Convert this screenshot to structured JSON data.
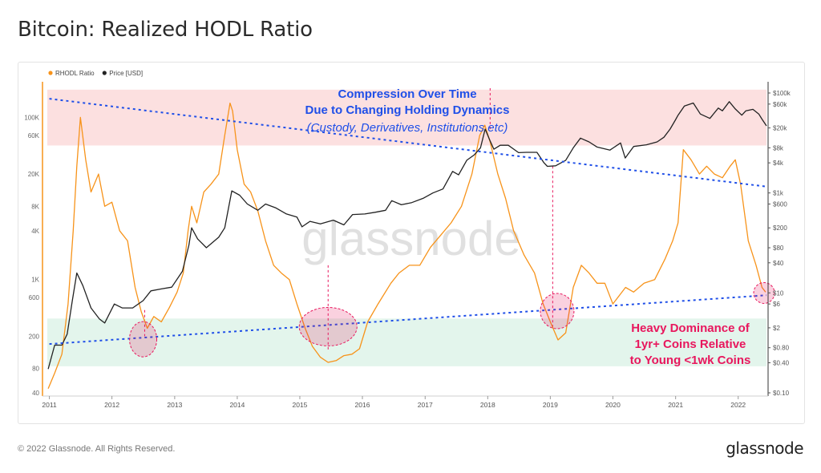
{
  "page": {
    "title": "Bitcoin: Realized HODL Ratio",
    "copyright": "© 2022 Glassnode. All Rights Reserved.",
    "logo": "glassnode",
    "watermark": "glassnode"
  },
  "colors": {
    "rhodl": "#f7931a",
    "price": "#222222",
    "trend": "#1f4fe8",
    "annotation_blue": "#1f4fe8",
    "annotation_pink": "#e8175d",
    "top_band": "#fbd5d5",
    "bottom_band": "#d9f2e6",
    "highlight_circle": "#e8175d"
  },
  "chart_data": {
    "type": "line",
    "title": "Bitcoin: Realized HODL Ratio",
    "legend": {
      "placement": "top-left",
      "items": [
        {
          "name": "RHODL Ratio",
          "color": "#f7931a"
        },
        {
          "name": "Price [USD]",
          "color": "#222222"
        }
      ]
    },
    "x_axis": {
      "type": "date",
      "range": [
        "2010-12-20",
        "2022-06-15"
      ],
      "tick_labels": [
        "2011",
        "2012",
        "2013",
        "2014",
        "2015",
        "2016",
        "2017",
        "2018",
        "2019",
        "2020",
        "2021",
        "2022"
      ]
    },
    "y_left": {
      "label": "",
      "scale": "log",
      "range": [
        40,
        200000
      ],
      "tick_labels": [
        "100K",
        "60K",
        "20K",
        "8K",
        "4K",
        "1K",
        "600",
        "200",
        "80",
        "40"
      ],
      "tick_values": [
        100000,
        60000,
        20000,
        8000,
        4000,
        1000,
        600,
        200,
        80,
        40
      ]
    },
    "y_right": {
      "label": "",
      "scale": "log",
      "range": [
        0.1,
        100000
      ],
      "tick_labels": [
        "$100k",
        "$60k",
        "$20k",
        "$8k",
        "$4k",
        "$1k",
        "$600",
        "$200",
        "$80",
        "$40",
        "$10",
        "$6",
        "$2",
        "$0.80",
        "$0.40",
        "$0.10"
      ],
      "tick_values": [
        100000,
        60000,
        20000,
        8000,
        4000,
        1000,
        600,
        200,
        80,
        40,
        10,
        6,
        2,
        0.8,
        0.4,
        0.1
      ]
    },
    "grid": false,
    "bands": [
      {
        "name": "top",
        "y_range": [
          45000,
          220000
        ],
        "color": "#fbd5d5"
      },
      {
        "name": "bottom",
        "y_range": [
          85,
          330
        ],
        "color": "#d9f2e6"
      }
    ],
    "series": [
      {
        "name": "RHODL Ratio",
        "axis": "left",
        "x": [
          "2010-12-25",
          "2011-02-01",
          "2011-03-15",
          "2011-04-20",
          "2011-05-20",
          "2011-06-10",
          "2011-07-01",
          "2011-08-01",
          "2011-09-01",
          "2011-10-15",
          "2011-11-20",
          "2012-01-01",
          "2012-02-15",
          "2012-04-01",
          "2012-05-15",
          "2012-06-20",
          "2012-07-25",
          "2012-09-01",
          "2012-10-15",
          "2012-12-01",
          "2013-01-15",
          "2013-02-20",
          "2013-03-20",
          "2013-04-10",
          "2013-05-10",
          "2013-06-20",
          "2013-08-01",
          "2013-09-15",
          "2013-10-20",
          "2013-11-20",
          "2013-12-05",
          "2014-01-01",
          "2014-02-10",
          "2014-03-20",
          "2014-05-01",
          "2014-06-15",
          "2014-08-01",
          "2014-09-15",
          "2014-11-01",
          "2014-12-15",
          "2015-02-01",
          "2015-03-15",
          "2015-05-01",
          "2015-06-15",
          "2015-08-01",
          "2015-09-15",
          "2015-11-01",
          "2015-12-15",
          "2016-02-01",
          "2016-04-01",
          "2016-06-15",
          "2016-08-01",
          "2016-10-01",
          "2016-12-01",
          "2017-02-01",
          "2017-04-01",
          "2017-06-01",
          "2017-08-01",
          "2017-10-01",
          "2017-11-15",
          "2017-12-15",
          "2018-01-15",
          "2018-03-01",
          "2018-04-15",
          "2018-06-01",
          "2018-08-01",
          "2018-10-01",
          "2018-11-20",
          "2019-01-01",
          "2019-02-15",
          "2019-04-01",
          "2019-05-15",
          "2019-07-01",
          "2019-08-15",
          "2019-10-01",
          "2019-11-15",
          "2020-01-01",
          "2020-03-15",
          "2020-05-01",
          "2020-07-01",
          "2020-09-01",
          "2020-11-01",
          "2020-12-15",
          "2021-01-15",
          "2021-02-15",
          "2021-04-01",
          "2021-05-20",
          "2021-07-01",
          "2021-08-15",
          "2021-10-01",
          "2021-11-15",
          "2021-12-15",
          "2022-01-15",
          "2022-03-01",
          "2022-04-15",
          "2022-05-20",
          "2022-06-10"
        ],
        "values": [
          45,
          70,
          120,
          500,
          4000,
          25000,
          100000,
          30000,
          12000,
          20000,
          8000,
          9000,
          4000,
          3000,
          800,
          400,
          250,
          350,
          300,
          450,
          700,
          1200,
          4000,
          8000,
          5000,
          12000,
          15000,
          20000,
          60000,
          150000,
          120000,
          40000,
          15000,
          12000,
          7000,
          3000,
          1500,
          1200,
          1000,
          500,
          250,
          150,
          110,
          95,
          100,
          115,
          120,
          140,
          300,
          500,
          900,
          1200,
          1500,
          1500,
          2500,
          3500,
          5000,
          8000,
          20000,
          60000,
          80000,
          50000,
          20000,
          10000,
          4000,
          2000,
          1200,
          500,
          300,
          180,
          220,
          800,
          1500,
          1200,
          900,
          900,
          500,
          800,
          700,
          900,
          1000,
          1800,
          3000,
          5000,
          40000,
          30000,
          20000,
          25000,
          20000,
          18000,
          25000,
          30000,
          15000,
          3000,
          1500,
          800,
          700
        ]
      },
      {
        "name": "Price [USD]",
        "axis": "right",
        "x": [
          "2010-12-25",
          "2011-02-01",
          "2011-03-15",
          "2011-04-15",
          "2011-05-15",
          "2011-06-10",
          "2011-07-15",
          "2011-09-01",
          "2011-10-20",
          "2011-11-20",
          "2012-01-15",
          "2012-03-01",
          "2012-05-01",
          "2012-07-01",
          "2012-08-15",
          "2012-10-15",
          "2012-12-15",
          "2013-02-15",
          "2013-03-25",
          "2013-04-10",
          "2013-05-15",
          "2013-07-05",
          "2013-09-15",
          "2013-10-20",
          "2013-11-30",
          "2014-01-15",
          "2014-03-01",
          "2014-05-01",
          "2014-06-15",
          "2014-08-15",
          "2014-10-15",
          "2014-12-15",
          "2015-01-14",
          "2015-03-01",
          "2015-05-01",
          "2015-07-15",
          "2015-09-15",
          "2015-11-05",
          "2016-01-15",
          "2016-03-15",
          "2016-05-15",
          "2016-06-20",
          "2016-08-15",
          "2016-10-15",
          "2016-12-20",
          "2017-02-15",
          "2017-04-15",
          "2017-06-10",
          "2017-07-15",
          "2017-09-01",
          "2017-10-15",
          "2017-11-20",
          "2017-12-17",
          "2018-01-15",
          "2018-02-06",
          "2018-03-15",
          "2018-05-01",
          "2018-06-30",
          "2018-08-15",
          "2018-10-15",
          "2018-11-25",
          "2018-12-15",
          "2019-02-01",
          "2019-04-01",
          "2019-05-15",
          "2019-06-26",
          "2019-08-15",
          "2019-10-01",
          "2019-12-15",
          "2020-02-15",
          "2020-03-13",
          "2020-05-01",
          "2020-07-15",
          "2020-09-15",
          "2020-10-25",
          "2020-11-30",
          "2020-12-31",
          "2021-01-15",
          "2021-02-21",
          "2021-04-14",
          "2021-05-25",
          "2021-07-20",
          "2021-09-07",
          "2021-10-01",
          "2021-11-10",
          "2021-12-15",
          "2022-01-22",
          "2022-02-15",
          "2022-03-28",
          "2022-05-01",
          "2022-05-20",
          "2022-06-15"
        ],
        "values": [
          0.3,
          0.9,
          0.9,
          1.5,
          7,
          25,
          14,
          5,
          3,
          2.5,
          6,
          5,
          5,
          7,
          11,
          12,
          13,
          27,
          90,
          200,
          120,
          80,
          130,
          200,
          1100,
          900,
          600,
          450,
          600,
          500,
          380,
          330,
          210,
          270,
          240,
          285,
          230,
          370,
          380,
          410,
          450,
          700,
          580,
          640,
          780,
          1000,
          1200,
          2700,
          2300,
          4500,
          5800,
          8000,
          19000,
          11000,
          7500,
          9000,
          9000,
          6400,
          6500,
          6500,
          4000,
          3400,
          3500,
          4500,
          8000,
          12500,
          10500,
          8300,
          7200,
          10000,
          5000,
          8500,
          9200,
          10500,
          13000,
          19000,
          29000,
          36000,
          55000,
          63000,
          38000,
          31000,
          50000,
          44000,
          67000,
          48000,
          36000,
          44000,
          47000,
          38000,
          30000,
          22000
        ]
      }
    ],
    "annotations": [
      {
        "text": "Compression Over Time",
        "style": "bold"
      },
      {
        "text": "Due to Changing Holding Dynamics",
        "style": "bold"
      },
      {
        "text": "(Custody, Derivatives, Institutions etc)",
        "style": "italic"
      },
      {
        "text": "Heavy Dominance of",
        "style": "bold"
      },
      {
        "text": "1yr+ Coins Relative",
        "style": "bold"
      },
      {
        "text": "to Young <1wk Coins",
        "style": "bold"
      }
    ],
    "trend_lines": [
      {
        "name": "upper-trend",
        "from": {
          "x": "2011-01-01",
          "y": 170000
        },
        "to": {
          "x": "2022-06-15",
          "y": 14000
        }
      },
      {
        "name": "lower-trend",
        "from": {
          "x": "2011-01-01",
          "y": 160
        },
        "to": {
          "x": "2022-06-15",
          "y": 640
        }
      }
    ],
    "highlight_dates": [
      "2012-07-01",
      "2015-06-15",
      "2019-02-10",
      "2022-06-01"
    ],
    "cycle_markers": [
      {
        "x": "2012-07-10",
        "y_from": 200,
        "y_to": 420
      },
      {
        "x": "2015-06-15",
        "y_from": 130,
        "y_to": 1500
      },
      {
        "x": "2018-01-15",
        "y_from": 70000,
        "y_to": 350000
      },
      {
        "x": "2019-01-15",
        "y_from": 250,
        "y_to": 25000
      }
    ]
  }
}
